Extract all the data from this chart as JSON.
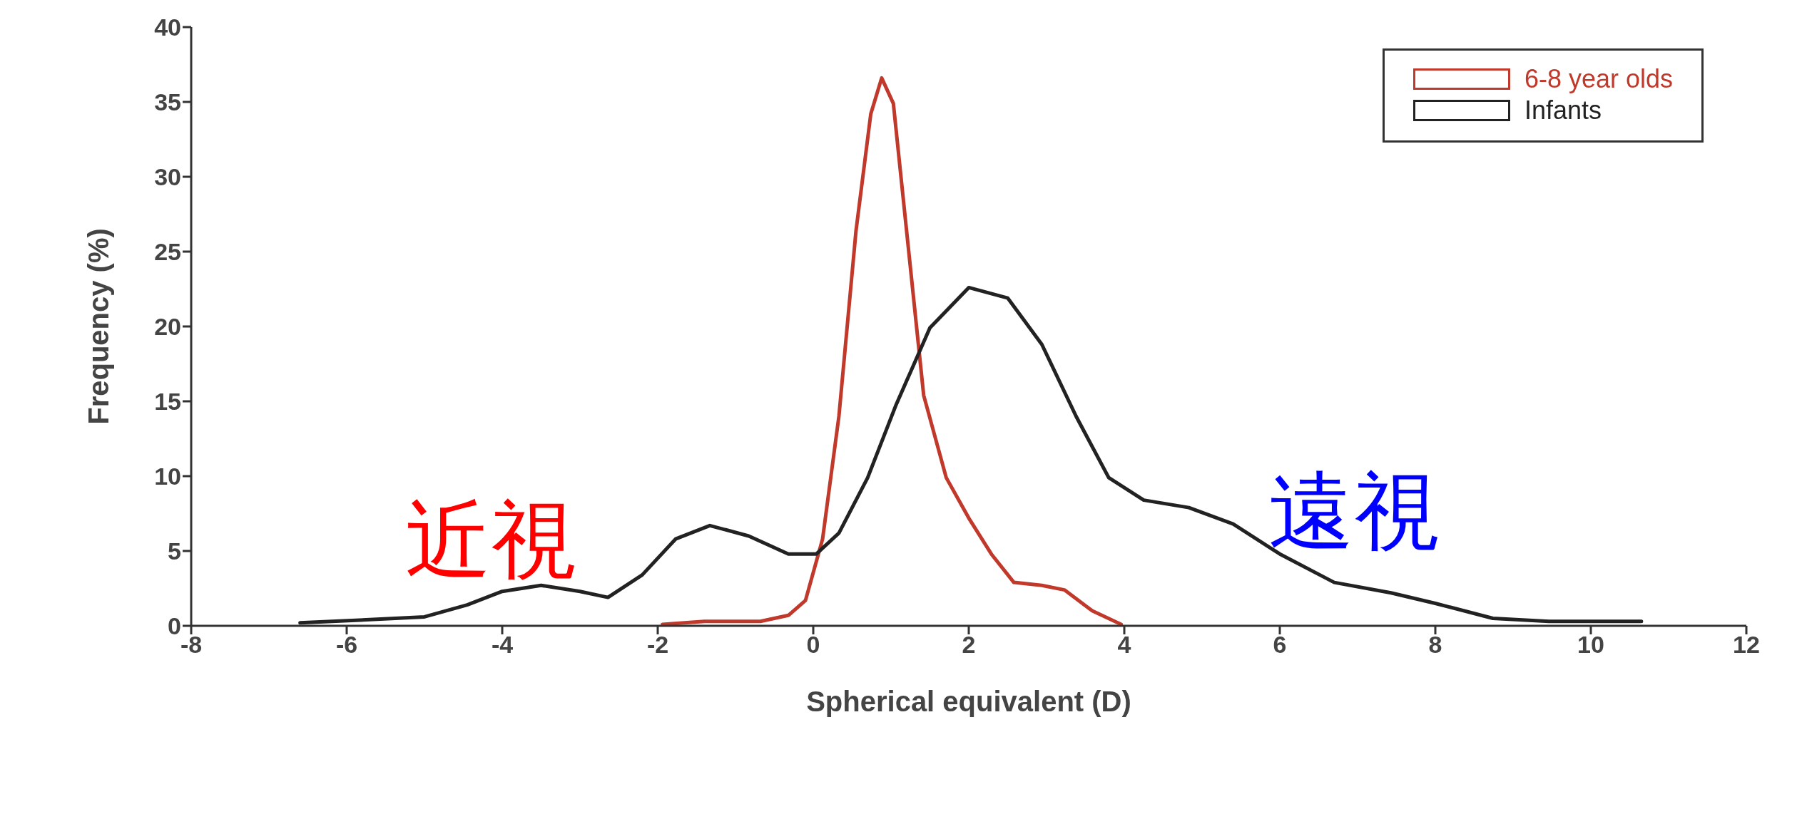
{
  "chart_data": {
    "type": "line",
    "xlabel": "Spherical equivalent (D)",
    "ylabel": "Frequency (%)",
    "xlim": [
      -8,
      12
    ],
    "xticks": [
      -8,
      -6,
      -4,
      -2,
      0,
      2,
      4,
      6,
      8,
      10,
      12
    ],
    "ylim": [
      0,
      40
    ],
    "yticks": [
      0,
      5,
      10,
      15,
      20,
      25,
      30,
      35,
      40
    ],
    "grid": false,
    "legend": "top right",
    "marker": "none",
    "line_style": "solid",
    "annotations": [
      "近視",
      "遠視"
    ],
    "series": [
      {
        "name": "6-8 year olds",
        "color": "#c0392b",
        "x": [
          -1.94,
          -1.4,
          -1.04,
          -0.68,
          -0.32,
          -0.1,
          0.12,
          0.33,
          0.55,
          0.74,
          0.88,
          1.03,
          1.2,
          1.42,
          1.71,
          2.0,
          2.29,
          2.58,
          2.94,
          3.23,
          3.59,
          3.96
        ],
        "values": [
          0.1,
          0.3,
          0.3,
          0.3,
          0.7,
          1.7,
          5.8,
          14.0,
          26.4,
          34.2,
          36.6,
          34.9,
          26.4,
          15.4,
          9.9,
          7.2,
          4.8,
          2.9,
          2.7,
          2.4,
          1.0,
          0.1
        ]
      },
      {
        "name": "Infants",
        "color": "#222222",
        "x": [
          -6.6,
          -5.75,
          -5.0,
          -4.45,
          -4.0,
          -3.5,
          -3.0,
          -2.64,
          -2.2,
          -1.77,
          -1.33,
          -0.83,
          -0.32,
          0.04,
          0.33,
          0.7,
          1.06,
          1.5,
          2.0,
          2.5,
          2.94,
          3.38,
          3.8,
          4.25,
          4.83,
          5.4,
          6.0,
          6.7,
          7.43,
          8.0,
          8.74,
          9.46,
          10.2,
          10.65
        ],
        "values": [
          0.2,
          0.4,
          0.6,
          1.4,
          2.3,
          2.7,
          2.3,
          1.9,
          3.4,
          5.8,
          6.7,
          6.0,
          4.8,
          4.8,
          6.2,
          9.9,
          14.7,
          19.9,
          22.6,
          21.9,
          18.8,
          14.0,
          9.9,
          8.4,
          7.9,
          6.8,
          4.8,
          2.9,
          2.2,
          1.5,
          0.5,
          0.3,
          0.3,
          0.3
        ]
      }
    ]
  }
}
